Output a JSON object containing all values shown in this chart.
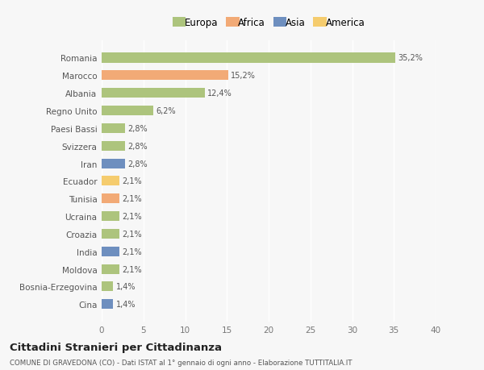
{
  "countries": [
    "Romania",
    "Marocco",
    "Albania",
    "Regno Unito",
    "Paesi Bassi",
    "Svizzera",
    "Iran",
    "Ecuador",
    "Tunisia",
    "Ucraina",
    "Croazia",
    "India",
    "Moldova",
    "Bosnia-Erzegovina",
    "Cina"
  ],
  "values": [
    35.2,
    15.2,
    12.4,
    6.2,
    2.8,
    2.8,
    2.8,
    2.1,
    2.1,
    2.1,
    2.1,
    2.1,
    2.1,
    1.4,
    1.4
  ],
  "labels": [
    "35,2%",
    "15,2%",
    "12,4%",
    "6,2%",
    "2,8%",
    "2,8%",
    "2,8%",
    "2,1%",
    "2,1%",
    "2,1%",
    "2,1%",
    "2,1%",
    "2,1%",
    "1,4%",
    "1,4%"
  ],
  "colors": [
    "#adc47d",
    "#f2aa76",
    "#adc47d",
    "#adc47d",
    "#adc47d",
    "#adc47d",
    "#6e8fbf",
    "#f5cc6e",
    "#f2aa76",
    "#adc47d",
    "#adc47d",
    "#6e8fbf",
    "#adc47d",
    "#adc47d",
    "#6e8fbf"
  ],
  "legend_labels": [
    "Europa",
    "Africa",
    "Asia",
    "America"
  ],
  "legend_colors": [
    "#adc47d",
    "#f2aa76",
    "#6e8fbf",
    "#f5cc6e"
  ],
  "xlim": [
    0,
    40
  ],
  "xticks": [
    0,
    5,
    10,
    15,
    20,
    25,
    30,
    35,
    40
  ],
  "title": "Cittadini Stranieri per Cittadinanza",
  "subtitle": "COMUNE DI GRAVEDONA (CO) - Dati ISTAT al 1° gennaio di ogni anno - Elaborazione TUTTITALIA.IT",
  "bg_color": "#f7f7f7",
  "plot_bg_color": "#f7f7f7",
  "grid_color": "#ffffff",
  "bar_height": 0.55
}
